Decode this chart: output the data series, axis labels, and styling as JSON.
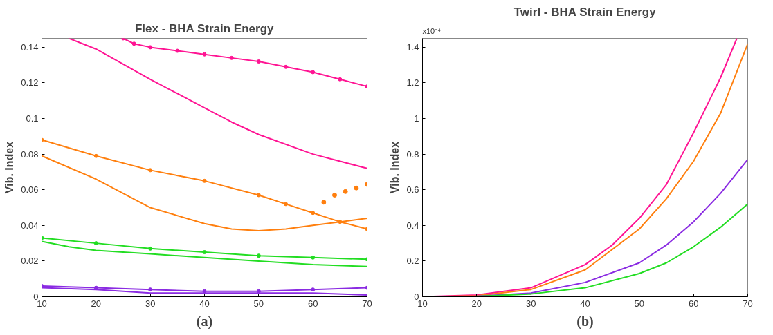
{
  "chart_data": [
    {
      "type": "line",
      "title": "Flex - BHA Strain Energy",
      "ylabel": "Vib. Index",
      "annotations": [
        "(a)"
      ],
      "xlim": [
        10,
        70
      ],
      "xticks": [
        10,
        20,
        30,
        40,
        50,
        60,
        70
      ],
      "ylim": [
        0,
        0.145
      ],
      "yticks": [
        0,
        0.02,
        0.04,
        0.06,
        0.08,
        0.1,
        0.12,
        0.14
      ],
      "grid": false,
      "series": [
        {
          "color": "#ff1493",
          "x": [
            15,
            20,
            30,
            40,
            45,
            50,
            60,
            70
          ],
          "values": [
            0.145,
            0.139,
            0.122,
            0.106,
            0.098,
            0.091,
            0.08,
            0.072
          ]
        },
        {
          "color": "#ff1493",
          "marker": "circle",
          "x": [
            25,
            27,
            30,
            35,
            40,
            45,
            50,
            55,
            60,
            65,
            70
          ],
          "values": [
            0.145,
            0.142,
            0.14,
            0.138,
            0.136,
            0.134,
            0.132,
            0.129,
            0.126,
            0.122,
            0.118
          ]
        },
        {
          "color": "#ff7f0e",
          "x": [
            10,
            20,
            30,
            40,
            45,
            50,
            55,
            60,
            65,
            70
          ],
          "values": [
            0.079,
            0.066,
            0.05,
            0.041,
            0.038,
            0.037,
            0.038,
            0.04,
            0.042,
            0.044
          ]
        },
        {
          "color": "#ff7f0e",
          "marker": "circle",
          "x": [
            10,
            20,
            30,
            40,
            50,
            55,
            60,
            65,
            70
          ],
          "values": [
            0.088,
            0.079,
            0.071,
            0.065,
            0.057,
            0.052,
            0.047,
            0.042,
            0.038
          ]
        },
        {
          "type": "scatter",
          "color": "#ff7f0e",
          "marker": "circle",
          "x": [
            62,
            64,
            66,
            68,
            70
          ],
          "values": [
            0.053,
            0.057,
            0.059,
            0.061,
            0.063
          ]
        },
        {
          "color": "#22dd22",
          "marker": "circle",
          "x": [
            10,
            20,
            30,
            40,
            50,
            60,
            70
          ],
          "values": [
            0.033,
            0.03,
            0.027,
            0.025,
            0.023,
            0.022,
            0.021
          ]
        },
        {
          "color": "#22dd22",
          "x": [
            10,
            15,
            20,
            30,
            40,
            50,
            60,
            70
          ],
          "values": [
            0.031,
            0.028,
            0.026,
            0.024,
            0.022,
            0.02,
            0.018,
            0.017
          ]
        },
        {
          "color": "#8a2be2",
          "marker": "circle",
          "x": [
            10,
            20,
            30,
            40,
            50,
            60,
            70
          ],
          "values": [
            0.006,
            0.005,
            0.004,
            0.003,
            0.003,
            0.004,
            0.005
          ]
        },
        {
          "color": "#8a2be2",
          "x": [
            10,
            20,
            30,
            40,
            50,
            60,
            70
          ],
          "values": [
            0.005,
            0.004,
            0.002,
            0.002,
            0.002,
            0.002,
            0.001
          ]
        }
      ]
    },
    {
      "type": "line",
      "title": "Twirl - BHA Strain Energy",
      "ylabel": "Vib. Index",
      "annotations": [
        "x10⁻⁴",
        "(b)"
      ],
      "xlim": [
        10,
        70
      ],
      "xticks": [
        10,
        20,
        30,
        40,
        50,
        60,
        70
      ],
      "ylim": [
        0,
        1.45
      ],
      "yticks": [
        0,
        0.2,
        0.4,
        0.6,
        0.8,
        1,
        1.2,
        1.4
      ],
      "grid": false,
      "series": [
        {
          "color": "#ff1493",
          "x": [
            10,
            20,
            30,
            40,
            45,
            50,
            55,
            60,
            65,
            68
          ],
          "values": [
            0,
            0.01,
            0.05,
            0.18,
            0.29,
            0.44,
            0.63,
            0.92,
            1.23,
            1.45
          ]
        },
        {
          "color": "#ff7f0e",
          "x": [
            10,
            20,
            30,
            40,
            50,
            55,
            60,
            65,
            70
          ],
          "values": [
            0,
            0.005,
            0.04,
            0.15,
            0.38,
            0.55,
            0.76,
            1.03,
            1.42
          ]
        },
        {
          "color": "#8a2be2",
          "x": [
            10,
            20,
            30,
            40,
            50,
            55,
            60,
            65,
            70
          ],
          "values": [
            0,
            0.003,
            0.02,
            0.08,
            0.19,
            0.29,
            0.42,
            0.58,
            0.77
          ]
        },
        {
          "color": "#22dd22",
          "x": [
            10,
            20,
            30,
            40,
            50,
            55,
            60,
            65,
            70
          ],
          "values": [
            0,
            0.002,
            0.015,
            0.05,
            0.13,
            0.19,
            0.28,
            0.39,
            0.52
          ]
        }
      ]
    }
  ]
}
